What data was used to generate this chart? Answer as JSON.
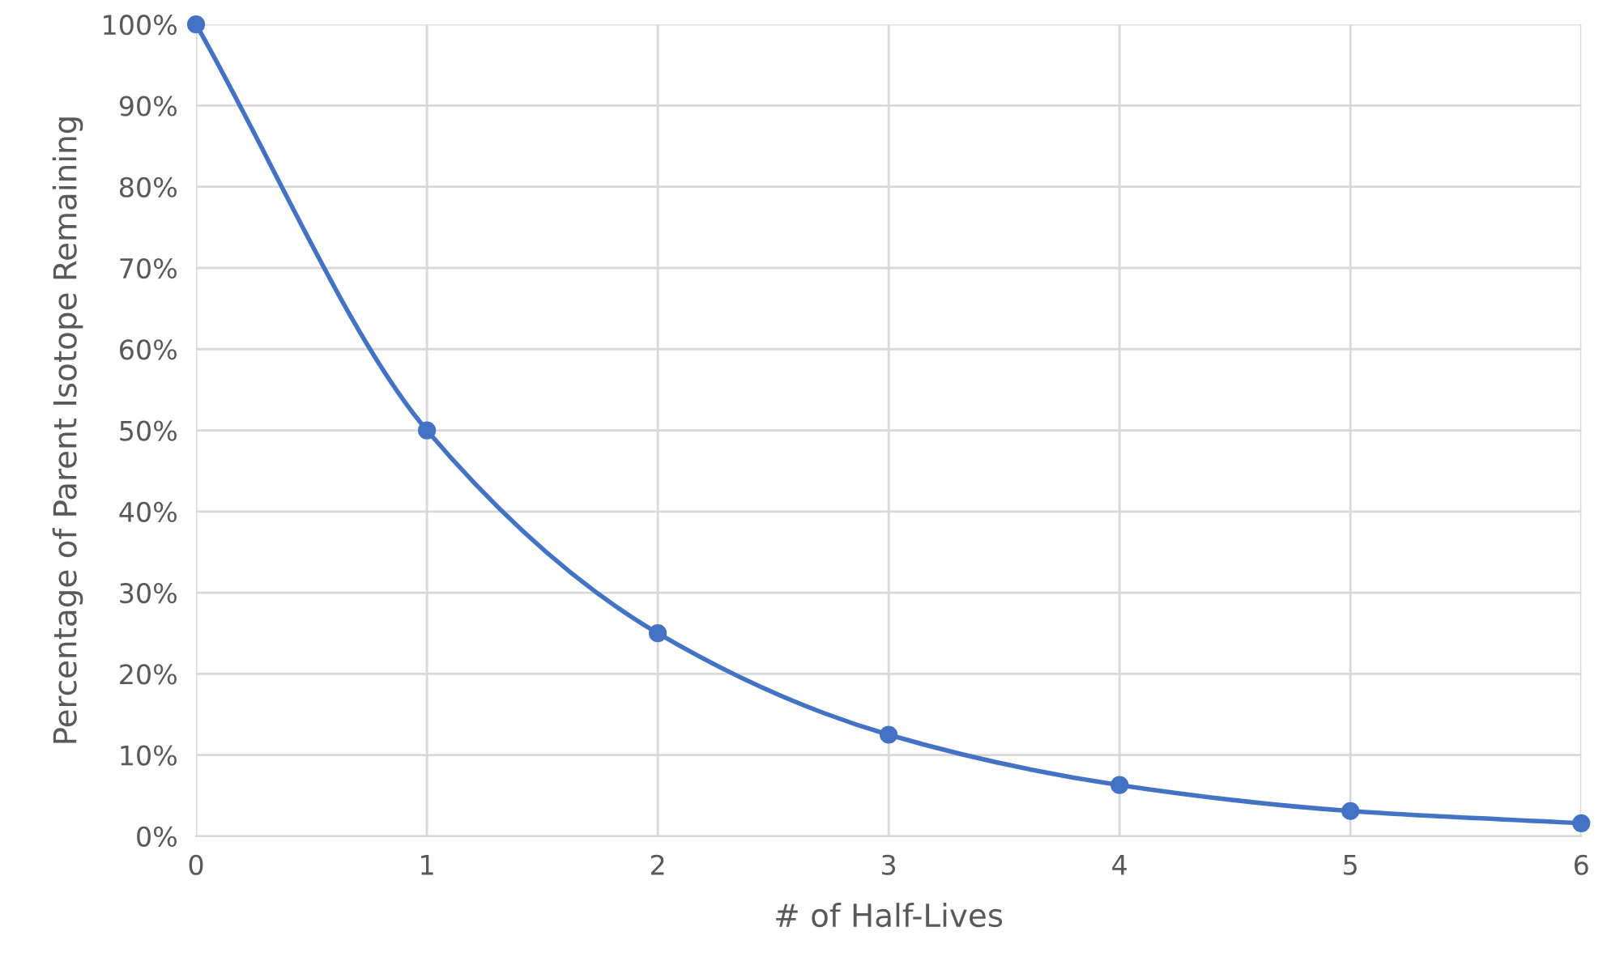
{
  "chart_data": {
    "type": "line",
    "xlabel": "# of Half-Lives",
    "ylabel": "Percentage of Parent Isotope Remaining",
    "x": [
      0,
      1,
      2,
      3,
      4,
      5,
      6
    ],
    "series": [
      {
        "color": "#4472c4",
        "values": [
          100,
          50,
          25,
          12.5,
          6.3,
          3.1,
          1.6
        ]
      }
    ],
    "xlim": [
      0,
      6
    ],
    "xticks": [
      0,
      1,
      2,
      3,
      4,
      5,
      6
    ],
    "ylim": [
      0,
      100
    ],
    "yticks": [
      {
        "value": 0,
        "label": "0%"
      },
      {
        "value": 10,
        "label": "10%"
      },
      {
        "value": 20,
        "label": "20%"
      },
      {
        "value": 30,
        "label": "30%"
      },
      {
        "value": 40,
        "label": "40%"
      },
      {
        "value": 50,
        "label": "50%"
      },
      {
        "value": 60,
        "label": "60%"
      },
      {
        "value": 70,
        "label": "70%"
      },
      {
        "value": 80,
        "label": "80%"
      },
      {
        "value": 90,
        "label": "90%"
      },
      {
        "value": 100,
        "label": "100%"
      }
    ],
    "grid": true,
    "marker": "circle",
    "line_style": "solid"
  }
}
